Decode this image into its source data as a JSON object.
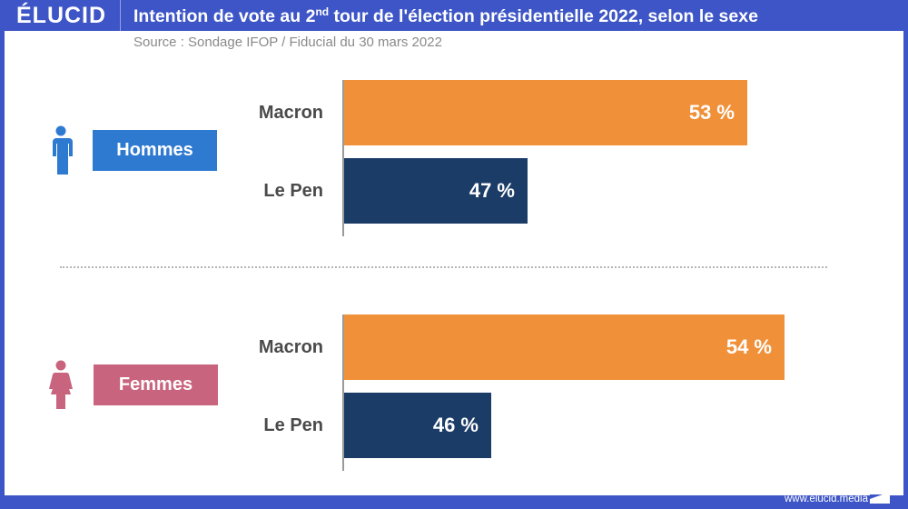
{
  "header": {
    "logo": "ÉLUCID",
    "title_pre": "Intention de vote au 2",
    "title_sup": "nd",
    "title_post": " tour de l'élection présidentielle 2022, selon le sexe",
    "source": "Source : Sondage IFOP / Fiducial du 30 mars 2022"
  },
  "footer": {
    "url": "www.elucid.media"
  },
  "colors": {
    "macron": "#f0913a",
    "lepen": "#1b3c66",
    "hommes": "#2f7ad1",
    "femmes": "#c9647e",
    "frame": "#3d55c6"
  },
  "chart_data": {
    "type": "bar",
    "orientation": "horizontal",
    "title": "Intention de vote au 2nd tour de l'élection présidentielle 2022, selon le sexe",
    "subtitle": "Source : Sondage IFOP / Fiducial du 30 mars 2022",
    "xlim": [
      42,
      56
    ],
    "grid": false,
    "groups": [
      {
        "name": "Hommes",
        "icon": "man-icon",
        "bars": [
          {
            "candidate": "Macron",
            "value": 53,
            "label": "53 %"
          },
          {
            "candidate": "Le Pen",
            "value": 47,
            "label": "47 %"
          }
        ]
      },
      {
        "name": "Femmes",
        "icon": "woman-icon",
        "bars": [
          {
            "candidate": "Macron",
            "value": 54,
            "label": "54 %"
          },
          {
            "candidate": "Le Pen",
            "value": 46,
            "label": "46 %"
          }
        ]
      }
    ]
  }
}
